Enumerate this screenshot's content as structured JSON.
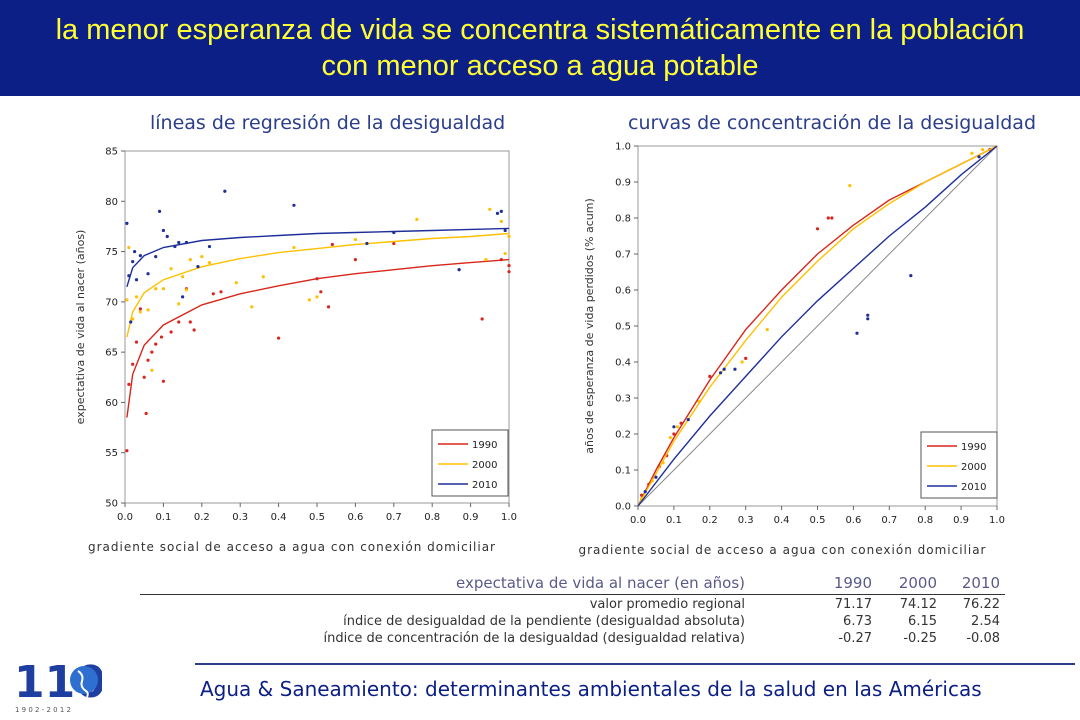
{
  "header": {
    "title_line1": "la menor esperanza de vida se concentra sistemáticamente en la población",
    "title_line2": "con menor acceso a agua potable"
  },
  "colors": {
    "s1990": "#d9261c",
    "s2000": "#ffc000",
    "s2010": "#1f2f9a",
    "title_bg": "#0b1f86",
    "title_fg": "#ffff33"
  },
  "chart_data": [
    {
      "type": "scatter",
      "title": "líneas de regresión de la desigualdad",
      "xlabel": "gradiente social de acceso a agua con conexión domiciliar",
      "ylabel": "expectativa de vida al nacer (años)",
      "xlim": [
        0,
        1
      ],
      "ylim": [
        50,
        85
      ],
      "xticks": [
        "0.0",
        "0.1",
        "0.2",
        "0.3",
        "0.4",
        "0.5",
        "0.6",
        "0.7",
        "0.8",
        "0.9",
        "1.0"
      ],
      "yticks": [
        "50",
        "55",
        "60",
        "65",
        "70",
        "75",
        "80",
        "85"
      ],
      "legend": {
        "placement": "bottom-right",
        "entries": [
          "1990",
          "2000",
          "2010"
        ]
      },
      "series": [
        {
          "name": "1990",
          "points": [
            [
              0.005,
              55.2
            ],
            [
              0.01,
              61.8
            ],
            [
              0.02,
              63.8
            ],
            [
              0.03,
              66.0
            ],
            [
              0.04,
              69.3
            ],
            [
              0.05,
              62.5
            ],
            [
              0.055,
              58.9
            ],
            [
              0.06,
              64.2
            ],
            [
              0.07,
              65.0
            ],
            [
              0.08,
              65.8
            ],
            [
              0.095,
              66.5
            ],
            [
              0.1,
              62.1
            ],
            [
              0.12,
              67.0
            ],
            [
              0.14,
              68.0
            ],
            [
              0.16,
              71.3
            ],
            [
              0.17,
              68.0
            ],
            [
              0.18,
              67.2
            ],
            [
              0.23,
              70.8
            ],
            [
              0.25,
              71.0
            ],
            [
              0.4,
              66.4
            ],
            [
              0.5,
              72.3
            ],
            [
              0.51,
              71.0
            ],
            [
              0.53,
              69.5
            ],
            [
              0.54,
              75.7
            ],
            [
              0.6,
              74.2
            ],
            [
              0.7,
              75.8
            ],
            [
              0.87,
              73.2
            ],
            [
              0.93,
              68.3
            ],
            [
              0.98,
              74.2
            ],
            [
              1.0,
              73.0
            ],
            [
              1.0,
              73.6
            ]
          ],
          "fit": [
            [
              0.005,
              58.5
            ],
            [
              0.02,
              62.8
            ],
            [
              0.05,
              65.7
            ],
            [
              0.1,
              67.7
            ],
            [
              0.2,
              69.7
            ],
            [
              0.3,
              70.8
            ],
            [
              0.4,
              71.6
            ],
            [
              0.5,
              72.3
            ],
            [
              0.6,
              72.8
            ],
            [
              0.7,
              73.2
            ],
            [
              0.8,
              73.6
            ],
            [
              0.9,
              73.9
            ],
            [
              1.0,
              74.2
            ]
          ]
        },
        {
          "name": "2000",
          "points": [
            [
              0.005,
              70.2
            ],
            [
              0.01,
              75.4
            ],
            [
              0.02,
              68.3
            ],
            [
              0.03,
              70.5
            ],
            [
              0.04,
              69.0
            ],
            [
              0.06,
              69.2
            ],
            [
              0.07,
              63.2
            ],
            [
              0.08,
              71.3
            ],
            [
              0.1,
              71.3
            ],
            [
              0.12,
              73.3
            ],
            [
              0.14,
              69.8
            ],
            [
              0.15,
              72.5
            ],
            [
              0.16,
              71.2
            ],
            [
              0.17,
              74.2
            ],
            [
              0.2,
              74.5
            ],
            [
              0.22,
              73.9
            ],
            [
              0.29,
              71.9
            ],
            [
              0.33,
              69.5
            ],
            [
              0.36,
              72.5
            ],
            [
              0.44,
              75.4
            ],
            [
              0.48,
              70.2
            ],
            [
              0.5,
              70.5
            ],
            [
              0.6,
              76.2
            ],
            [
              0.76,
              78.2
            ],
            [
              0.94,
              74.2
            ],
            [
              0.95,
              79.2
            ],
            [
              0.98,
              78.0
            ],
            [
              0.99,
              74.8
            ],
            [
              1.0,
              76.5
            ]
          ],
          "fit": [
            [
              0.005,
              66.5
            ],
            [
              0.02,
              69.0
            ],
            [
              0.05,
              70.9
            ],
            [
              0.1,
              72.2
            ],
            [
              0.2,
              73.5
            ],
            [
              0.3,
              74.3
            ],
            [
              0.4,
              74.9
            ],
            [
              0.5,
              75.3
            ],
            [
              0.6,
              75.7
            ],
            [
              0.7,
              76.0
            ],
            [
              0.8,
              76.3
            ],
            [
              0.9,
              76.5
            ],
            [
              1.0,
              76.8
            ]
          ]
        },
        {
          "name": "2010",
          "points": [
            [
              0.005,
              77.8
            ],
            [
              0.01,
              72.6
            ],
            [
              0.015,
              68.0
            ],
            [
              0.02,
              74.0
            ],
            [
              0.025,
              75.0
            ],
            [
              0.03,
              72.2
            ],
            [
              0.04,
              74.6
            ],
            [
              0.06,
              72.8
            ],
            [
              0.08,
              74.5
            ],
            [
              0.09,
              79.0
            ],
            [
              0.1,
              77.1
            ],
            [
              0.11,
              76.5
            ],
            [
              0.13,
              75.5
            ],
            [
              0.14,
              75.9
            ],
            [
              0.15,
              70.5
            ],
            [
              0.16,
              75.9
            ],
            [
              0.19,
              73.5
            ],
            [
              0.22,
              75.5
            ],
            [
              0.26,
              81.0
            ],
            [
              0.44,
              79.6
            ],
            [
              0.63,
              75.8
            ],
            [
              0.7,
              76.9
            ],
            [
              0.87,
              73.2
            ],
            [
              0.97,
              78.8
            ],
            [
              0.98,
              79.0
            ],
            [
              0.99,
              77.1
            ]
          ],
          "fit": [
            [
              0.005,
              71.5
            ],
            [
              0.02,
              73.4
            ],
            [
              0.05,
              74.6
            ],
            [
              0.1,
              75.4
            ],
            [
              0.2,
              76.1
            ],
            [
              0.3,
              76.4
            ],
            [
              0.4,
              76.6
            ],
            [
              0.5,
              76.8
            ],
            [
              0.6,
              76.9
            ],
            [
              0.7,
              77.0
            ],
            [
              0.8,
              77.1
            ],
            [
              0.9,
              77.2
            ],
            [
              1.0,
              77.3
            ]
          ]
        }
      ]
    },
    {
      "type": "line",
      "title": "curvas de concentración de la desigualdad",
      "xlabel": "gradiente social de acceso a agua con conexión domiciliar",
      "ylabel": "años de esperanza de vida perdidos (% acum)",
      "xlim": [
        0,
        1
      ],
      "ylim": [
        0,
        1
      ],
      "xticks": [
        "0.0",
        "0.1",
        "0.2",
        "0.3",
        "0.4",
        "0.5",
        "0.6",
        "0.7",
        "0.8",
        "0.9",
        "1.0"
      ],
      "yticks": [
        "0.0",
        "0.1",
        "0.2",
        "0.3",
        "0.4",
        "0.5",
        "0.6",
        "0.7",
        "0.8",
        "0.9",
        "1.0"
      ],
      "legend": {
        "placement": "bottom-right",
        "entries": [
          "1990",
          "2000",
          "2010"
        ]
      },
      "series": [
        {
          "name": "1990",
          "points": [
            [
              0.01,
              0.03
            ],
            [
              0.03,
              0.06
            ],
            [
              0.06,
              0.11
            ],
            [
              0.08,
              0.14
            ],
            [
              0.1,
              0.2
            ],
            [
              0.12,
              0.23
            ],
            [
              0.2,
              0.36
            ],
            [
              0.3,
              0.41
            ],
            [
              0.5,
              0.77
            ],
            [
              0.53,
              0.8
            ],
            [
              0.54,
              0.8
            ],
            [
              0.98,
              0.99
            ]
          ],
          "curve": [
            [
              0,
              0
            ],
            [
              0.05,
              0.1
            ],
            [
              0.1,
              0.19
            ],
            [
              0.2,
              0.35
            ],
            [
              0.3,
              0.49
            ],
            [
              0.4,
              0.6
            ],
            [
              0.5,
              0.7
            ],
            [
              0.6,
              0.78
            ],
            [
              0.7,
              0.85
            ],
            [
              0.8,
              0.9
            ],
            [
              0.9,
              0.95
            ],
            [
              1.0,
              1.0
            ]
          ]
        },
        {
          "name": "2000",
          "points": [
            [
              0.01,
              0.02
            ],
            [
              0.04,
              0.07
            ],
            [
              0.07,
              0.12
            ],
            [
              0.09,
              0.19
            ],
            [
              0.11,
              0.22
            ],
            [
              0.17,
              0.29
            ],
            [
              0.29,
              0.4
            ],
            [
              0.36,
              0.49
            ],
            [
              0.59,
              0.89
            ],
            [
              0.93,
              0.98
            ],
            [
              0.96,
              0.99
            ]
          ],
          "curve": [
            [
              0,
              0
            ],
            [
              0.05,
              0.09
            ],
            [
              0.1,
              0.18
            ],
            [
              0.2,
              0.33
            ],
            [
              0.3,
              0.46
            ],
            [
              0.4,
              0.58
            ],
            [
              0.5,
              0.68
            ],
            [
              0.6,
              0.77
            ],
            [
              0.7,
              0.84
            ],
            [
              0.8,
              0.9
            ],
            [
              0.9,
              0.95
            ],
            [
              1.0,
              1.0
            ]
          ]
        },
        {
          "name": "2010",
          "points": [
            [
              0.02,
              0.04
            ],
            [
              0.05,
              0.08
            ],
            [
              0.1,
              0.22
            ],
            [
              0.14,
              0.24
            ],
            [
              0.23,
              0.37
            ],
            [
              0.24,
              0.38
            ],
            [
              0.27,
              0.38
            ],
            [
              0.61,
              0.48
            ],
            [
              0.64,
              0.53
            ],
            [
              0.64,
              0.52
            ],
            [
              0.76,
              0.64
            ],
            [
              0.95,
              0.97
            ]
          ],
          "curve": [
            [
              0,
              0
            ],
            [
              0.1,
              0.13
            ],
            [
              0.2,
              0.25
            ],
            [
              0.3,
              0.36
            ],
            [
              0.4,
              0.47
            ],
            [
              0.5,
              0.57
            ],
            [
              0.6,
              0.66
            ],
            [
              0.7,
              0.75
            ],
            [
              0.8,
              0.83
            ],
            [
              0.9,
              0.92
            ],
            [
              1.0,
              1.0
            ]
          ]
        }
      ],
      "equality_line": [
        [
          0,
          0
        ],
        [
          1,
          1
        ]
      ]
    }
  ],
  "table": {
    "title": "expectativa de vida al nacer (en años)",
    "years": [
      "1990",
      "2000",
      "2010"
    ],
    "rows": [
      {
        "label": "valor promedio regional",
        "values": [
          "71.17",
          "74.12",
          "76.22"
        ]
      },
      {
        "label": "índice de desigualdad de la pendiente (desigualdad absoluta)",
        "values": [
          "6.73",
          "6.15",
          "2.54"
        ]
      },
      {
        "label": "índice de concentración de la desigualdad (desigualdad relativa)",
        "values": [
          "-0.27",
          "-0.25",
          "-0.08"
        ]
      }
    ]
  },
  "footer": {
    "text": "Agua & Saneamiento: determinantes ambientales de la salud en las Américas"
  },
  "logo": {
    "text": "110",
    "years": "1 9 0 2 - 2 0 1 2"
  }
}
